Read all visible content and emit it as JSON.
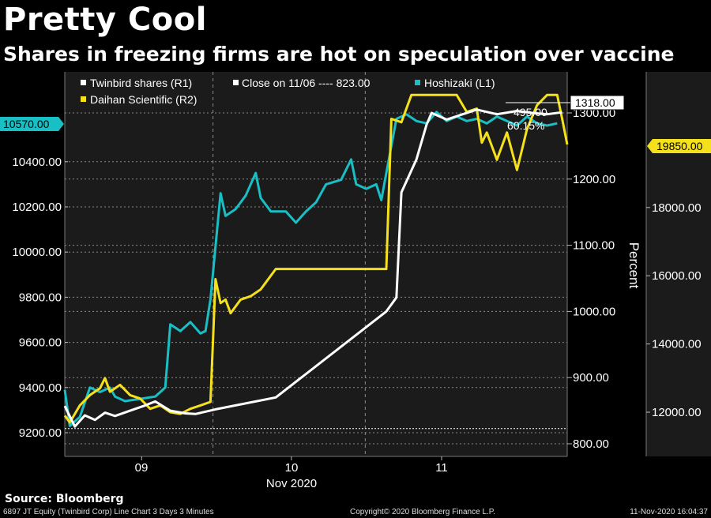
{
  "header": {
    "title": "Pretty Cool",
    "subtitle": "Shares in freezing firms are hot on speculation over vaccine"
  },
  "source": "Source: Bloomberg",
  "footer": {
    "left": "6897 JT Equity (Twinbird Corp) Line Chart 3 Days 3 Minutes",
    "center": "Copyright© 2020 Bloomberg Finance L.P.",
    "right": "11-Nov-2020 16:04:37"
  },
  "colors": {
    "background": "#000000",
    "panel": "#1b1b1b",
    "grid": "#8a8a8a",
    "twinbird": "#ffffff",
    "hoshizaki": "#18bfc4",
    "daihan": "#f5e11b"
  },
  "chart_data": {
    "type": "line",
    "x_axis": {
      "labels": [
        "09",
        "10",
        "11"
      ],
      "month_label": "Nov 2020"
    },
    "axes": {
      "L1": {
        "ticks": [
          9200,
          9400,
          9600,
          9800,
          10000,
          10200,
          10400
        ],
        "labels": [
          "9200.00",
          "9400.00",
          "9600.00",
          "9800.00",
          "10000.00",
          "10200.00",
          "10400.00"
        ]
      },
      "R1": {
        "ticks": [
          800,
          900,
          1000,
          1100,
          1200,
          1300
        ],
        "labels": [
          "800.00",
          "900.00",
          "1000.00",
          "1100.00",
          "1200.00",
          "1300.00"
        ],
        "title": "Percent"
      },
      "R2": {
        "ticks": [
          12000,
          14000,
          16000,
          18000
        ],
        "labels": [
          "12000.00",
          "14000.00",
          "16000.00",
          "18000.00"
        ]
      }
    },
    "reference_line": {
      "axis": "R1",
      "value": 823
    },
    "legend": {
      "items": [
        {
          "label": "Twinbird shares (R1)",
          "color": "#ffffff"
        },
        {
          "label": "Close on 11/06 ---- 823.00",
          "color": "#ffffff"
        },
        {
          "label": "Hoshizaki (L1)",
          "color": "#18bfc4"
        },
        {
          "label": "Daihan Scientific (R2)",
          "color": "#f5e11b"
        }
      ],
      "placement": "top-left"
    },
    "annotations": {
      "twinbird_last": "1318.00",
      "hoshizaki_last": "10570.00",
      "daihan_last": "19850.00",
      "change_value": "495.00",
      "change_pct": "60.15%"
    },
    "series": [
      {
        "name": "Twinbird shares (R1)",
        "axis": "R1",
        "color": "#ffffff",
        "points": [
          [
            0.0,
            857
          ],
          [
            0.02,
            826
          ],
          [
            0.04,
            843
          ],
          [
            0.06,
            836
          ],
          [
            0.08,
            847
          ],
          [
            0.1,
            842
          ],
          [
            0.13,
            850
          ],
          [
            0.16,
            858
          ],
          [
            0.18,
            864
          ],
          [
            0.21,
            850
          ],
          [
            0.24,
            846
          ],
          [
            0.26,
            845
          ],
          [
            0.3,
            852
          ],
          [
            0.32,
            855
          ],
          [
            0.42,
            870
          ],
          [
            0.64,
            1000
          ],
          [
            0.66,
            1021
          ],
          [
            0.67,
            1180
          ],
          [
            0.7,
            1230
          ],
          [
            0.72,
            1282
          ],
          [
            0.73,
            1300
          ],
          [
            0.76,
            1290
          ],
          [
            0.78,
            1295
          ],
          [
            0.82,
            1305
          ],
          [
            0.86,
            1298
          ],
          [
            0.9,
            1303
          ],
          [
            0.93,
            1300
          ],
          [
            0.96,
            1298
          ],
          [
            0.99,
            1301
          ]
        ]
      },
      {
        "name": "Hoshizaki (L1)",
        "axis": "L1",
        "color": "#18bfc4",
        "points": [
          [
            0.0,
            9390
          ],
          [
            0.01,
            9230
          ],
          [
            0.03,
            9270
          ],
          [
            0.05,
            9400
          ],
          [
            0.07,
            9380
          ],
          [
            0.09,
            9400
          ],
          [
            0.1,
            9360
          ],
          [
            0.12,
            9340
          ],
          [
            0.15,
            9350
          ],
          [
            0.18,
            9360
          ],
          [
            0.2,
            9400
          ],
          [
            0.21,
            9680
          ],
          [
            0.23,
            9650
          ],
          [
            0.25,
            9690
          ],
          [
            0.27,
            9640
          ],
          [
            0.28,
            9650
          ],
          [
            0.29,
            9790
          ],
          [
            0.31,
            10260
          ],
          [
            0.32,
            10160
          ],
          [
            0.34,
            10190
          ],
          [
            0.36,
            10250
          ],
          [
            0.38,
            10350
          ],
          [
            0.39,
            10240
          ],
          [
            0.41,
            10180
          ],
          [
            0.44,
            10180
          ],
          [
            0.46,
            10130
          ],
          [
            0.48,
            10180
          ],
          [
            0.5,
            10220
          ],
          [
            0.52,
            10300
          ],
          [
            0.55,
            10320
          ],
          [
            0.57,
            10410
          ],
          [
            0.58,
            10300
          ],
          [
            0.6,
            10280
          ],
          [
            0.62,
            10300
          ],
          [
            0.63,
            10230
          ],
          [
            0.64,
            10350
          ],
          [
            0.66,
            10590
          ],
          [
            0.68,
            10610
          ],
          [
            0.7,
            10580
          ],
          [
            0.72,
            10570
          ],
          [
            0.74,
            10620
          ],
          [
            0.76,
            10580
          ],
          [
            0.78,
            10600
          ],
          [
            0.8,
            10580
          ],
          [
            0.82,
            10590
          ],
          [
            0.84,
            10570
          ],
          [
            0.86,
            10600
          ],
          [
            0.88,
            10580
          ],
          [
            0.9,
            10560
          ],
          [
            0.92,
            10600
          ],
          [
            0.94,
            10570
          ],
          [
            0.96,
            10560
          ],
          [
            0.98,
            10570
          ]
        ]
      },
      {
        "name": "Daihan Scientific (R2)",
        "axis": "R2",
        "color": "#f5e11b",
        "points": [
          [
            0.0,
            11900
          ],
          [
            0.01,
            11700
          ],
          [
            0.03,
            12200
          ],
          [
            0.05,
            12500
          ],
          [
            0.07,
            12700
          ],
          [
            0.08,
            13000
          ],
          [
            0.09,
            12600
          ],
          [
            0.11,
            12800
          ],
          [
            0.13,
            12500
          ],
          [
            0.15,
            12400
          ],
          [
            0.17,
            12100
          ],
          [
            0.19,
            12200
          ],
          [
            0.21,
            12000
          ],
          [
            0.23,
            11950
          ],
          [
            0.25,
            12100
          ],
          [
            0.27,
            12200
          ],
          [
            0.29,
            12300
          ],
          [
            0.3,
            15900
          ],
          [
            0.31,
            15200
          ],
          [
            0.32,
            15300
          ],
          [
            0.33,
            14900
          ],
          [
            0.35,
            15300
          ],
          [
            0.37,
            15400
          ],
          [
            0.39,
            15600
          ],
          [
            0.4,
            15800
          ],
          [
            0.42,
            16200
          ],
          [
            0.6,
            16200
          ],
          [
            0.64,
            16200
          ],
          [
            0.65,
            20600
          ],
          [
            0.67,
            20500
          ],
          [
            0.69,
            21300
          ],
          [
            0.71,
            21300
          ],
          [
            0.73,
            21300
          ],
          [
            0.76,
            21300
          ],
          [
            0.78,
            21300
          ],
          [
            0.8,
            20800
          ],
          [
            0.82,
            20900
          ],
          [
            0.83,
            19900
          ],
          [
            0.84,
            20200
          ],
          [
            0.86,
            19400
          ],
          [
            0.88,
            20200
          ],
          [
            0.9,
            19100
          ],
          [
            0.91,
            19700
          ],
          [
            0.92,
            20300
          ],
          [
            0.94,
            21000
          ],
          [
            0.96,
            21300
          ],
          [
            0.98,
            21300
          ],
          [
            0.99,
            20600
          ],
          [
            1.0,
            19850
          ]
        ]
      }
    ]
  }
}
